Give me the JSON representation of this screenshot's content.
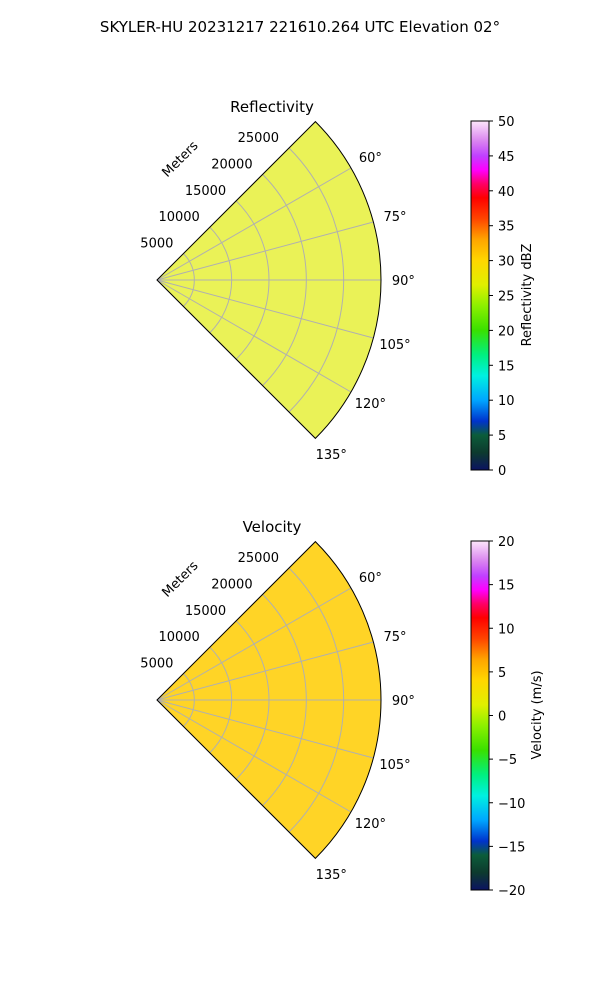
{
  "figure": {
    "title": "SKYLER-HU  20231217  221610.264 UTC Elevation 02°"
  },
  "chart_data": [
    {
      "type": "heatmap",
      "projection": "polar-sector",
      "title": "Reflectivity",
      "range_label": "Meters",
      "range_ticks": [
        5000,
        10000,
        15000,
        20000,
        25000
      ],
      "range_tick_labels": [
        "5000",
        "10000",
        "15000",
        "20000",
        "25000"
      ],
      "range_max": 30000,
      "azimuth_ticks": [
        60,
        75,
        90,
        105,
        120,
        135
      ],
      "azimuth_tick_labels": [
        "60°",
        "75°",
        "90°",
        "105°",
        "120°",
        "135°"
      ],
      "azimuth_range": [
        45,
        135
      ],
      "grid": true,
      "colorbar": {
        "label": "Reflectivity dBZ",
        "range": [
          0,
          50
        ],
        "ticks": [
          0,
          5,
          10,
          15,
          20,
          25,
          30,
          35,
          40,
          45,
          50
        ],
        "tick_labels": [
          "0",
          "5",
          "10",
          "15",
          "20",
          "25",
          "30",
          "35",
          "40",
          "45",
          "50"
        ],
        "colormap": "HomeyerRainbow"
      }
    },
    {
      "type": "heatmap",
      "projection": "polar-sector",
      "title": "Velocity",
      "range_label": "Meters",
      "range_ticks": [
        5000,
        10000,
        15000,
        20000,
        25000
      ],
      "range_tick_labels": [
        "5000",
        "10000",
        "15000",
        "20000",
        "25000"
      ],
      "range_max": 30000,
      "azimuth_ticks": [
        60,
        75,
        90,
        105,
        120,
        135
      ],
      "azimuth_tick_labels": [
        "60°",
        "75°",
        "90°",
        "105°",
        "120°",
        "135°"
      ],
      "azimuth_range": [
        45,
        135
      ],
      "grid": true,
      "colorbar": {
        "label": "Velocity (m/s)",
        "range": [
          -20,
          20
        ],
        "ticks": [
          -20,
          -15,
          -10,
          -5,
          0,
          5,
          10,
          15,
          20
        ],
        "tick_labels": [
          "−20",
          "−15",
          "−10",
          "−5",
          "0",
          "5",
          "10",
          "15",
          "20"
        ],
        "colormap": "HomeyerRainbow"
      }
    }
  ],
  "colors": {
    "grid": "#b0b0b0",
    "frame": "#000000"
  }
}
